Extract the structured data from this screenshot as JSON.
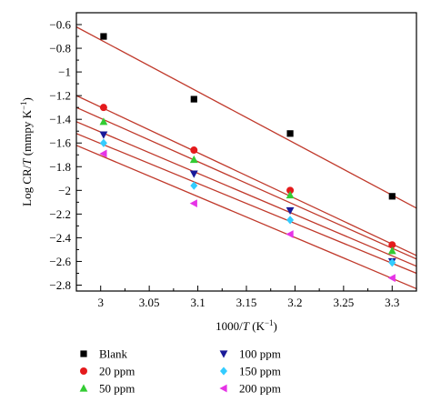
{
  "chart_data": {
    "type": "scatter",
    "xlabel_prefix": "1000/",
    "xlabel_var": "T",
    "xlabel_unit_base": " (K",
    "xlabel_unit_exp": "−1",
    "xlabel_unit_close": ")",
    "ylabel_prefix": "Log CR/",
    "ylabel_var": "T",
    "ylabel_unit_base": " (mmpy K",
    "ylabel_unit_exp": "−1",
    "ylabel_unit_close": ")",
    "xlim": [
      2.975,
      3.325
    ],
    "ylim": [
      -2.85,
      -0.5
    ],
    "x_ticks": [
      3,
      3.05,
      3.1,
      3.15,
      3.2,
      3.25,
      3.3
    ],
    "x_tick_labels": [
      "3",
      "3.05",
      "3.1",
      "3.15",
      "3.2",
      "3.25",
      "3.3"
    ],
    "y_ticks": [
      -0.6,
      -0.8,
      -1,
      -1.2,
      -1.4,
      -1.6,
      -1.8,
      -2,
      -2.2,
      -2.4,
      -2.6,
      -2.8
    ],
    "y_tick_labels": [
      "−0.6",
      "−0.8",
      "−1",
      "−1.2",
      "−1.4",
      "−1.6",
      "−1.8",
      "−2",
      "−2.2",
      "−2.4",
      "−2.6",
      "−2.8"
    ],
    "x": [
      3.003,
      3.096,
      3.195,
      3.3
    ],
    "fit_line_color": "#c0392b",
    "grid": false,
    "legend_position": "bottom",
    "series": [
      {
        "name": "Blank",
        "marker": "square",
        "color": "#000000",
        "y": [
          -0.7,
          -1.23,
          -1.52,
          -2.05
        ],
        "fit": [
          -0.62,
          -2.15
        ]
      },
      {
        "name": "20 ppm",
        "marker": "circle",
        "color": "#e41a1c",
        "y": [
          -1.3,
          -1.66,
          -2.0,
          -2.46
        ],
        "fit": [
          -1.2,
          -2.55
        ]
      },
      {
        "name": "50 ppm",
        "marker": "triangle-up",
        "color": "#33cc33",
        "y": [
          -1.42,
          -1.74,
          -2.04,
          -2.51
        ],
        "fit": [
          -1.3,
          -2.58
        ]
      },
      {
        "name": "100 ppm",
        "marker": "triangle-down",
        "color": "#1a1a99",
        "y": [
          -1.53,
          -1.86,
          -2.17,
          -2.6
        ],
        "fit": [
          -1.42,
          -2.64
        ]
      },
      {
        "name": "150 ppm",
        "marker": "diamond",
        "color": "#33ccff",
        "y": [
          -1.6,
          -1.96,
          -2.25,
          -2.61
        ],
        "fit": [
          -1.52,
          -2.7
        ]
      },
      {
        "name": "200 ppm",
        "marker": "triangle-left",
        "color": "#e633e6",
        "y": [
          -1.69,
          -2.11,
          -2.37,
          -2.74
        ],
        "fit": [
          -1.62,
          -2.83
        ]
      }
    ]
  }
}
